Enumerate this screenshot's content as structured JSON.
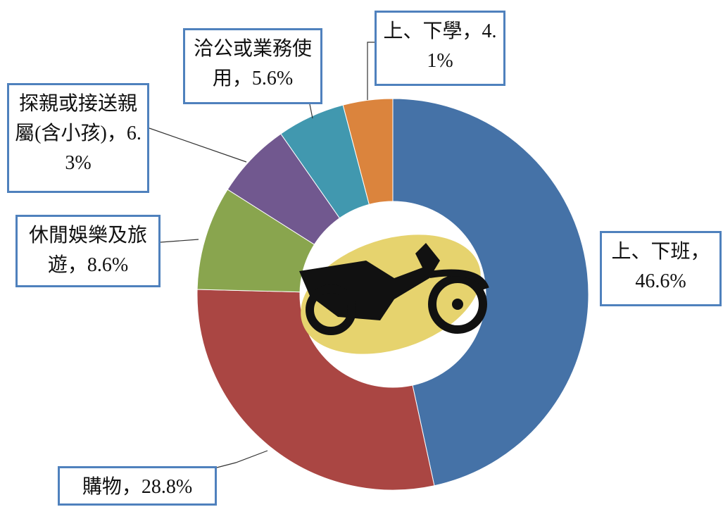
{
  "chart_data": {
    "type": "donut",
    "categories": [
      "上、下班，",
      "購物，",
      "休閒娛樂及旅遊，",
      "探親或接送親屬(含小孩)，",
      "洽公或業務使用，",
      "上、下學，"
    ],
    "values": [
      46.6,
      28.8,
      8.6,
      6.3,
      5.6,
      4.1
    ],
    "value_labels": [
      "46.6%",
      "28.8%",
      "8.6%",
      "6.3%",
      "5.6%",
      "4.1%"
    ],
    "colors": [
      "#4572a7",
      "#aa4643",
      "#89a54e",
      "#71588f",
      "#4198af",
      "#db843d"
    ]
  }
}
